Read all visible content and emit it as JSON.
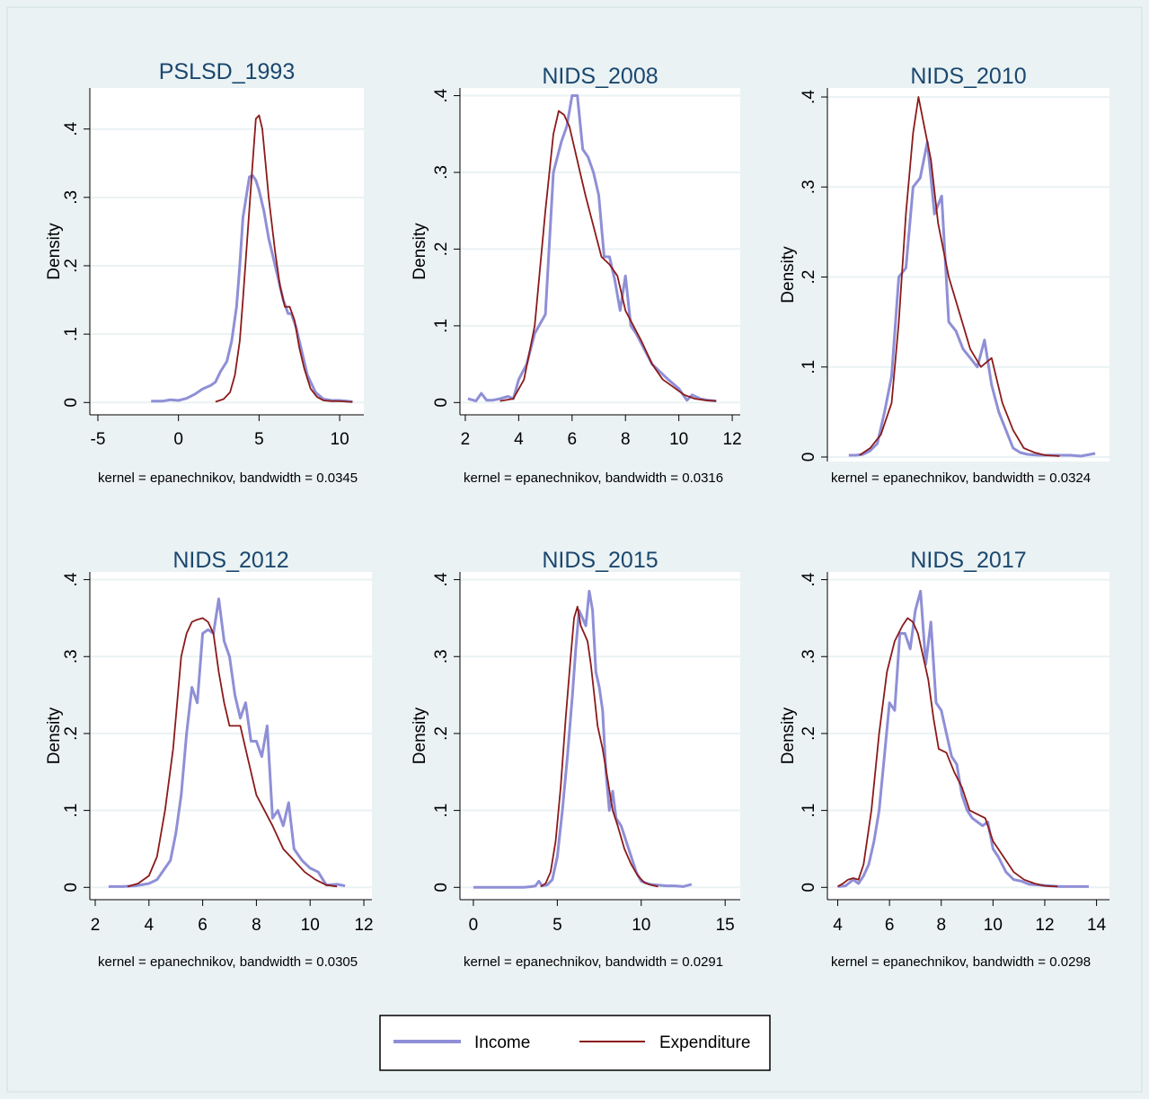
{
  "legend": {
    "placement": "bottom-center",
    "entries": [
      {
        "label": "Income",
        "color": "#8f8fd7"
      },
      {
        "label": "Expenditure",
        "color": "#8b1a1a"
      }
    ]
  },
  "ylabel": "Density",
  "colors": {
    "title": "#1a476f",
    "grid": "#eaf2f3",
    "plot_bg": "#ffffff",
    "outer_bg": "#eaf2f3"
  },
  "chart_data": [
    {
      "type": "line",
      "title": "PSLSD_1993",
      "note": "kernel = epanechnikov, bandwidth = 0.0345",
      "ylabel": "Density",
      "xlim": [
        -5.5,
        11.5
      ],
      "ylim": [
        -0.018,
        0.46
      ],
      "xticks": [
        "-5",
        "0",
        "5",
        "10"
      ],
      "xtick_values": [
        -5,
        0,
        5,
        10
      ],
      "yticks": [
        "0",
        ".1",
        ".2",
        ".3",
        ".4"
      ],
      "ytick_values": [
        0,
        0.1,
        0.2,
        0.3,
        0.4
      ],
      "grid": true,
      "series": [
        {
          "name": "Income",
          "color": "#8f8fd7",
          "x": [
            -1.7,
            -1,
            -0.5,
            0,
            0.5,
            1,
            1.5,
            2,
            2.3,
            2.6,
            3,
            3.3,
            3.6,
            3.8,
            4,
            4.2,
            4.4,
            4.6,
            4.8,
            5,
            5.3,
            5.6,
            5.9,
            6.2,
            6.5,
            6.8,
            7,
            7.3,
            7.6,
            8,
            8.5,
            9,
            9.5,
            10,
            10.5,
            10.8
          ],
          "y": [
            0.002,
            0.002,
            0.004,
            0.003,
            0.006,
            0.012,
            0.02,
            0.025,
            0.03,
            0.045,
            0.06,
            0.09,
            0.14,
            0.2,
            0.27,
            0.3,
            0.33,
            0.332,
            0.325,
            0.31,
            0.28,
            0.24,
            0.21,
            0.18,
            0.15,
            0.13,
            0.13,
            0.11,
            0.08,
            0.04,
            0.015,
            0.005,
            0.003,
            0.003,
            0.002,
            0.001
          ]
        },
        {
          "name": "Expenditure",
          "color": "#8b1a1a",
          "x": [
            2.3,
            2.8,
            3.2,
            3.5,
            3.8,
            4,
            4.3,
            4.6,
            4.8,
            5,
            5.2,
            5.4,
            5.6,
            5.8,
            6,
            6.3,
            6.6,
            6.9,
            7.2,
            7.5,
            7.8,
            8.2,
            8.6,
            9,
            9.5,
            10,
            10.5,
            10.8
          ],
          "y": [
            0.001,
            0.005,
            0.015,
            0.04,
            0.09,
            0.15,
            0.25,
            0.35,
            0.415,
            0.42,
            0.4,
            0.35,
            0.3,
            0.26,
            0.22,
            0.17,
            0.14,
            0.14,
            0.12,
            0.08,
            0.05,
            0.02,
            0.008,
            0.003,
            0.002,
            0.002,
            0.001,
            0.001
          ]
        }
      ]
    },
    {
      "type": "line",
      "title": "NIDS_2008",
      "note": "kernel = epanechnikov, bandwidth = 0.0316",
      "ylabel": "Density",
      "xlim": [
        1.8,
        12.3
      ],
      "ylim": [
        -0.016,
        0.41
      ],
      "xticks": [
        "2",
        "4",
        "6",
        "8",
        "10",
        "12"
      ],
      "xtick_values": [
        2,
        4,
        6,
        8,
        10,
        12
      ],
      "yticks": [
        "0",
        ".1",
        ".2",
        ".3",
        ".4"
      ],
      "ytick_values": [
        0,
        0.1,
        0.2,
        0.3,
        0.4
      ],
      "grid": true,
      "series": [
        {
          "name": "Income",
          "color": "#8f8fd7",
          "x": [
            2.1,
            2.4,
            2.6,
            2.8,
            3,
            3.3,
            3.6,
            3.8,
            4,
            4.3,
            4.6,
            5,
            5.3,
            5.6,
            5.8,
            6,
            6.2,
            6.4,
            6.6,
            6.8,
            7,
            7.2,
            7.4,
            7.6,
            7.8,
            8,
            8.2,
            8.4,
            8.7,
            9,
            9.3,
            9.6,
            10,
            10.3,
            10.5,
            10.8,
            11.1,
            11.4
          ],
          "y": [
            0.005,
            0.002,
            0.012,
            0.003,
            0.003,
            0.005,
            0.008,
            0.005,
            0.03,
            0.05,
            0.09,
            0.115,
            0.3,
            0.34,
            0.36,
            0.4,
            0.4,
            0.33,
            0.32,
            0.3,
            0.27,
            0.19,
            0.19,
            0.16,
            0.12,
            0.165,
            0.1,
            0.09,
            0.07,
            0.05,
            0.04,
            0.03,
            0.018,
            0.003,
            0.01,
            0.005,
            0.003,
            0.002
          ]
        },
        {
          "name": "Expenditure",
          "color": "#8b1a1a",
          "x": [
            3.3,
            3.8,
            4.2,
            4.6,
            5,
            5.3,
            5.5,
            5.7,
            5.9,
            6.1,
            6.3,
            6.5,
            6.8,
            7.1,
            7.4,
            7.7,
            8,
            8.3,
            8.6,
            9,
            9.4,
            9.8,
            10.2,
            10.6,
            11,
            11.4
          ],
          "y": [
            0.002,
            0.005,
            0.03,
            0.1,
            0.25,
            0.35,
            0.38,
            0.375,
            0.36,
            0.33,
            0.3,
            0.27,
            0.23,
            0.19,
            0.18,
            0.165,
            0.12,
            0.1,
            0.08,
            0.05,
            0.03,
            0.02,
            0.01,
            0.005,
            0.003,
            0.002
          ]
        }
      ]
    },
    {
      "type": "line",
      "title": "NIDS_2010",
      "note": "kernel = epanechnikov, bandwidth = 0.0324",
      "ylabel": "Density",
      "xlim": [
        5.3,
        13.2
      ],
      "ylim": [
        -0.005,
        0.41
      ],
      "xticks": [],
      "xtick_values": [],
      "yticks": [
        "0",
        ".1",
        ".2",
        ".3",
        ".4"
      ],
      "ytick_values": [
        0,
        0.1,
        0.2,
        0.3,
        0.4
      ],
      "grid": true,
      "series": [
        {
          "name": "Income",
          "color": "#8f8fd7",
          "x": [
            5.9,
            6.1,
            6.3,
            6.5,
            6.7,
            6.9,
            7.1,
            7.3,
            7.5,
            7.7,
            7.9,
            8.1,
            8.3,
            8.5,
            8.7,
            8.9,
            9.1,
            9.3,
            9.5,
            9.7,
            9.9,
            10.1,
            10.3,
            10.5,
            10.7,
            10.9,
            11.2,
            11.5,
            11.8,
            12.1,
            12.4,
            12.8
          ],
          "y": [
            0.002,
            0.002,
            0.003,
            0.007,
            0.015,
            0.05,
            0.09,
            0.2,
            0.21,
            0.3,
            0.31,
            0.35,
            0.27,
            0.29,
            0.15,
            0.14,
            0.12,
            0.11,
            0.1,
            0.13,
            0.08,
            0.05,
            0.03,
            0.01,
            0.005,
            0.003,
            0.002,
            0.002,
            0.002,
            0.002,
            0.001,
            0.004
          ]
        },
        {
          "name": "Expenditure",
          "color": "#8b1a1a",
          "x": [
            6.2,
            6.5,
            6.8,
            7.1,
            7.3,
            7.5,
            7.7,
            7.85,
            8,
            8.2,
            8.4,
            8.7,
            9,
            9.3,
            9.6,
            9.9,
            10.2,
            10.5,
            10.8,
            11.1,
            11.4,
            11.8
          ],
          "y": [
            0.002,
            0.01,
            0.025,
            0.06,
            0.15,
            0.27,
            0.36,
            0.4,
            0.37,
            0.33,
            0.26,
            0.2,
            0.16,
            0.12,
            0.1,
            0.11,
            0.06,
            0.03,
            0.01,
            0.005,
            0.002,
            0.001
          ]
        }
      ]
    },
    {
      "type": "line",
      "title": "NIDS_2012",
      "note": "kernel = epanechnikov, bandwidth = 0.0305",
      "ylabel": "Density",
      "xlim": [
        1.8,
        12.3
      ],
      "ylim": [
        -0.016,
        0.41
      ],
      "xticks": [
        "2",
        "4",
        "6",
        "8",
        "10",
        "12"
      ],
      "xtick_values": [
        2,
        4,
        6,
        8,
        10,
        12
      ],
      "yticks": [
        "0",
        ".1",
        ".2",
        ".3",
        ".4"
      ],
      "ytick_values": [
        0,
        0.1,
        0.2,
        0.3,
        0.4
      ],
      "grid": true,
      "series": [
        {
          "name": "Income",
          "color": "#8f8fd7",
          "x": [
            2.5,
            3,
            3.5,
            4,
            4.3,
            4.6,
            4.8,
            5,
            5.2,
            5.4,
            5.6,
            5.8,
            6,
            6.2,
            6.4,
            6.6,
            6.8,
            7,
            7.2,
            7.4,
            7.6,
            7.8,
            8,
            8.2,
            8.4,
            8.6,
            8.8,
            9,
            9.2,
            9.4,
            9.7,
            10,
            10.3,
            10.6,
            11,
            11.3
          ],
          "y": [
            0.001,
            0.001,
            0.002,
            0.005,
            0.01,
            0.025,
            0.035,
            0.07,
            0.12,
            0.2,
            0.26,
            0.24,
            0.33,
            0.335,
            0.33,
            0.375,
            0.32,
            0.3,
            0.25,
            0.22,
            0.24,
            0.19,
            0.19,
            0.17,
            0.21,
            0.09,
            0.1,
            0.08,
            0.11,
            0.05,
            0.035,
            0.025,
            0.02,
            0.003,
            0.004,
            0.002
          ]
        },
        {
          "name": "Expenditure",
          "color": "#8b1a1a",
          "x": [
            3.2,
            3.6,
            4,
            4.3,
            4.6,
            4.9,
            5.2,
            5.4,
            5.6,
            5.8,
            6,
            6.2,
            6.4,
            6.6,
            6.8,
            7,
            7.2,
            7.4,
            7.6,
            7.8,
            8,
            8.3,
            8.6,
            9,
            9.4,
            9.8,
            10.2,
            10.6,
            11
          ],
          "y": [
            0.001,
            0.005,
            0.015,
            0.04,
            0.1,
            0.18,
            0.3,
            0.33,
            0.345,
            0.348,
            0.35,
            0.345,
            0.33,
            0.28,
            0.24,
            0.21,
            0.21,
            0.21,
            0.18,
            0.15,
            0.12,
            0.1,
            0.08,
            0.05,
            0.035,
            0.02,
            0.01,
            0.003,
            0.001
          ]
        }
      ]
    },
    {
      "type": "line",
      "title": "NIDS_2015",
      "note": "kernel = epanechnikov, bandwidth = 0.0291",
      "ylabel": "Density",
      "xlim": [
        -0.8,
        15.9
      ],
      "ylim": [
        -0.016,
        0.41
      ],
      "xticks": [
        "0",
        "5",
        "10",
        "15"
      ],
      "xtick_values": [
        0,
        5,
        10,
        15
      ],
      "yticks": [
        "0",
        ".1",
        ".2",
        ".3",
        ".4"
      ],
      "ytick_values": [
        0,
        0.1,
        0.2,
        0.3,
        0.4
      ],
      "grid": true,
      "series": [
        {
          "name": "Income",
          "color": "#8f8fd7",
          "x": [
            0,
            1,
            2,
            3,
            3.5,
            3.7,
            3.9,
            4.1,
            4.4,
            4.7,
            5,
            5.3,
            5.6,
            5.9,
            6.1,
            6.3,
            6.5,
            6.7,
            6.9,
            7.1,
            7.3,
            7.5,
            7.7,
            7.9,
            8.1,
            8.3,
            8.5,
            8.8,
            9.1,
            9.4,
            9.7,
            10,
            10.5,
            11,
            11.5,
            12,
            12.5,
            13
          ],
          "y": [
            0,
            0,
            0,
            0,
            0.001,
            0.002,
            0.008,
            0.002,
            0.003,
            0.01,
            0.04,
            0.1,
            0.17,
            0.25,
            0.31,
            0.36,
            0.35,
            0.34,
            0.385,
            0.36,
            0.28,
            0.26,
            0.23,
            0.15,
            0.1,
            0.125,
            0.09,
            0.08,
            0.06,
            0.04,
            0.02,
            0.008,
            0.004,
            0.003,
            0.002,
            0.002,
            0.001,
            0.004
          ]
        },
        {
          "name": "Expenditure",
          "color": "#8b1a1a",
          "x": [
            4,
            4.3,
            4.6,
            4.9,
            5.2,
            5.5,
            5.8,
            6,
            6.2,
            6.4,
            6.6,
            6.8,
            7,
            7.2,
            7.4,
            7.7,
            8,
            8.3,
            8.6,
            9,
            9.4,
            9.8,
            10.2,
            10.6,
            11
          ],
          "y": [
            0.001,
            0.005,
            0.02,
            0.06,
            0.13,
            0.22,
            0.3,
            0.35,
            0.365,
            0.34,
            0.33,
            0.32,
            0.29,
            0.25,
            0.21,
            0.18,
            0.14,
            0.1,
            0.08,
            0.05,
            0.03,
            0.015,
            0.006,
            0.003,
            0.001
          ]
        }
      ]
    },
    {
      "type": "line",
      "title": "NIDS_2017",
      "note": "kernel = epanechnikov, bandwidth = 0.0298",
      "ylabel": "Density",
      "xlim": [
        3.6,
        14.5
      ],
      "ylim": [
        -0.016,
        0.41
      ],
      "xticks": [
        "4",
        "6",
        "8",
        "10",
        "12",
        "14"
      ],
      "xtick_values": [
        4,
        6,
        8,
        10,
        12,
        14
      ],
      "yticks": [
        "0",
        ".1",
        ".2",
        ".3",
        ".4"
      ],
      "ytick_values": [
        0,
        0.1,
        0.2,
        0.3,
        0.4
      ],
      "grid": true,
      "series": [
        {
          "name": "Income",
          "color": "#8f8fd7",
          "x": [
            4,
            4.3,
            4.6,
            4.8,
            5,
            5.2,
            5.4,
            5.6,
            5.8,
            6,
            6.2,
            6.4,
            6.6,
            6.8,
            7,
            7.2,
            7.4,
            7.6,
            7.8,
            8,
            8.2,
            8.4,
            8.6,
            8.8,
            9,
            9.2,
            9.4,
            9.6,
            9.8,
            10,
            10.2,
            10.5,
            10.8,
            11.1,
            11.4,
            11.8,
            12.2,
            12.6,
            13,
            13.4,
            13.7
          ],
          "y": [
            0.001,
            0.002,
            0.01,
            0.005,
            0.015,
            0.03,
            0.06,
            0.1,
            0.17,
            0.24,
            0.23,
            0.33,
            0.33,
            0.31,
            0.36,
            0.385,
            0.29,
            0.345,
            0.24,
            0.23,
            0.2,
            0.17,
            0.16,
            0.12,
            0.1,
            0.09,
            0.085,
            0.08,
            0.085,
            0.05,
            0.04,
            0.02,
            0.01,
            0.008,
            0.004,
            0.003,
            0.002,
            0.001,
            0.001,
            0.001,
            0.001
          ]
        },
        {
          "name": "Expenditure",
          "color": "#8b1a1a",
          "x": [
            4,
            4.2,
            4.4,
            4.6,
            4.8,
            5,
            5.3,
            5.6,
            5.9,
            6.2,
            6.5,
            6.7,
            6.9,
            7.1,
            7.3,
            7.5,
            7.7,
            7.9,
            8.2,
            8.5,
            8.8,
            9.1,
            9.4,
            9.7,
            10,
            10.4,
            10.8,
            11.2,
            11.6,
            12,
            12.5
          ],
          "y": [
            0.001,
            0.005,
            0.01,
            0.012,
            0.01,
            0.03,
            0.1,
            0.2,
            0.28,
            0.32,
            0.34,
            0.35,
            0.345,
            0.33,
            0.3,
            0.27,
            0.22,
            0.18,
            0.175,
            0.15,
            0.13,
            0.1,
            0.095,
            0.09,
            0.06,
            0.04,
            0.02,
            0.01,
            0.005,
            0.002,
            0.001
          ]
        }
      ]
    }
  ]
}
